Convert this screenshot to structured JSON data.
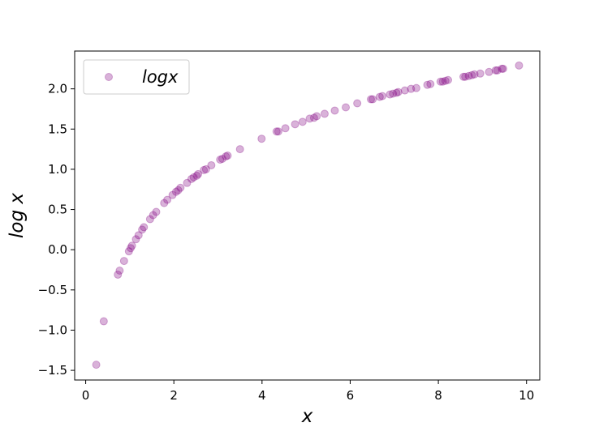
{
  "chart_data": {
    "type": "scatter",
    "xlabel": "x",
    "ylabel": "log x",
    "xlim": [
      -0.25,
      10.3
    ],
    "ylim": [
      -1.62,
      2.47
    ],
    "x_ticks": [
      0,
      2,
      4,
      6,
      8,
      10
    ],
    "y_ticks": [
      -1.5,
      -1.0,
      -0.5,
      0.0,
      0.5,
      1.0,
      1.5,
      2.0
    ],
    "x_tick_labels": [
      "0",
      "2",
      "4",
      "6",
      "8",
      "10"
    ],
    "y_tick_labels": [
      "−1.5",
      "−1.0",
      "−0.5",
      "0.0",
      "0.5",
      "1.0",
      "1.5",
      "2.0"
    ],
    "grid": false,
    "legend_position": "upper-left",
    "series": [
      {
        "name": "logx",
        "color": "#800080",
        "alpha": 0.3,
        "marker": "circle",
        "points": [
          [
            0.24,
            -1.43
          ],
          [
            0.41,
            -0.89
          ],
          [
            0.73,
            -0.31
          ],
          [
            0.77,
            -0.26
          ],
          [
            0.87,
            -0.14
          ],
          [
            0.98,
            -0.02
          ],
          [
            1.02,
            0.02
          ],
          [
            1.05,
            0.05
          ],
          [
            1.14,
            0.13
          ],
          [
            1.2,
            0.18
          ],
          [
            1.28,
            0.25
          ],
          [
            1.32,
            0.28
          ],
          [
            1.46,
            0.38
          ],
          [
            1.53,
            0.43
          ],
          [
            1.6,
            0.47
          ],
          [
            1.78,
            0.58
          ],
          [
            1.85,
            0.62
          ],
          [
            1.97,
            0.68
          ],
          [
            2.05,
            0.72
          ],
          [
            2.1,
            0.74
          ],
          [
            2.15,
            0.77
          ],
          [
            2.3,
            0.83
          ],
          [
            2.4,
            0.88
          ],
          [
            2.45,
            0.9
          ],
          [
            2.52,
            0.92
          ],
          [
            2.55,
            0.94
          ],
          [
            2.68,
            0.99
          ],
          [
            2.73,
            1.0
          ],
          [
            2.85,
            1.05
          ],
          [
            3.05,
            1.12
          ],
          [
            3.1,
            1.13
          ],
          [
            3.18,
            1.16
          ],
          [
            3.22,
            1.17
          ],
          [
            3.5,
            1.25
          ],
          [
            3.99,
            1.38
          ],
          [
            4.33,
            1.47
          ],
          [
            4.37,
            1.47
          ],
          [
            4.53,
            1.51
          ],
          [
            4.75,
            1.56
          ],
          [
            4.92,
            1.59
          ],
          [
            5.08,
            1.63
          ],
          [
            5.18,
            1.64
          ],
          [
            5.24,
            1.66
          ],
          [
            5.42,
            1.69
          ],
          [
            5.65,
            1.73
          ],
          [
            5.9,
            1.77
          ],
          [
            6.16,
            1.82
          ],
          [
            6.47,
            1.87
          ],
          [
            6.51,
            1.87
          ],
          [
            6.67,
            1.9
          ],
          [
            6.73,
            1.91
          ],
          [
            6.9,
            1.93
          ],
          [
            6.97,
            1.94
          ],
          [
            7.05,
            1.95
          ],
          [
            7.09,
            1.96
          ],
          [
            7.24,
            1.98
          ],
          [
            7.38,
            2.0
          ],
          [
            7.5,
            2.01
          ],
          [
            7.75,
            2.05
          ],
          [
            7.82,
            2.06
          ],
          [
            8.05,
            2.09
          ],
          [
            8.1,
            2.09
          ],
          [
            8.16,
            2.1
          ],
          [
            8.22,
            2.11
          ],
          [
            8.57,
            2.15
          ],
          [
            8.61,
            2.15
          ],
          [
            8.69,
            2.16
          ],
          [
            8.76,
            2.17
          ],
          [
            8.82,
            2.18
          ],
          [
            8.95,
            2.19
          ],
          [
            9.15,
            2.21
          ],
          [
            9.3,
            2.23
          ],
          [
            9.34,
            2.23
          ],
          [
            9.44,
            2.25
          ],
          [
            9.47,
            2.25
          ],
          [
            9.83,
            2.29
          ]
        ]
      }
    ]
  }
}
